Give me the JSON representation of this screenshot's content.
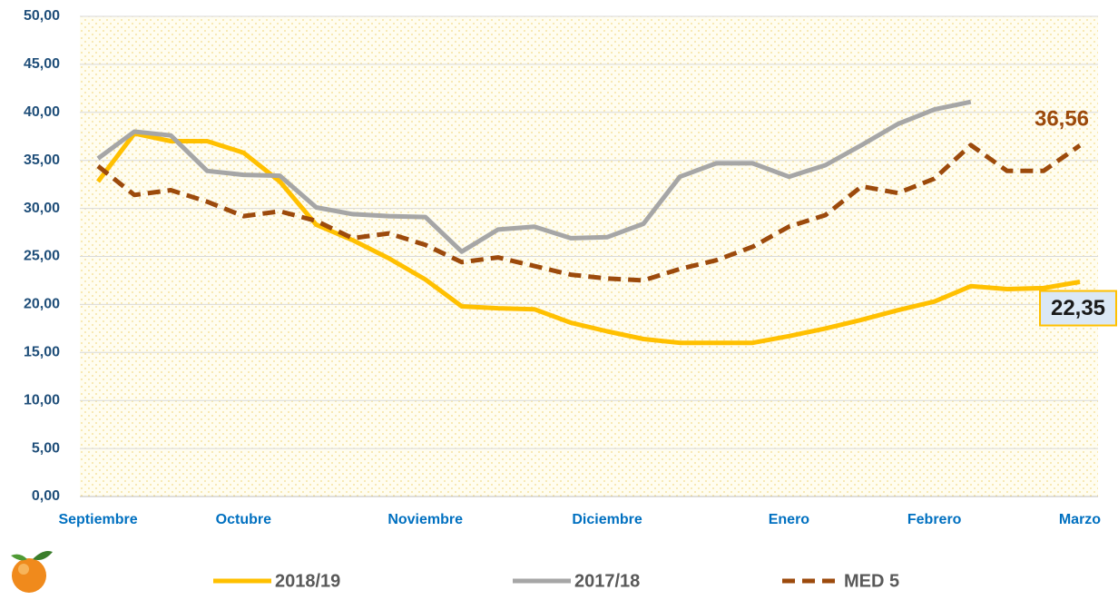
{
  "chart_data": {
    "type": "line",
    "categories": [
      "Septiembre",
      null,
      null,
      null,
      "Octubre",
      null,
      null,
      null,
      null,
      "Noviembre",
      null,
      null,
      null,
      null,
      "Diciembre",
      null,
      null,
      null,
      null,
      "Enero",
      null,
      null,
      null,
      "Febrero",
      null,
      null,
      null,
      "Marzo"
    ],
    "series": [
      {
        "name": "2018/19",
        "color": "#ffc000",
        "style": "solid",
        "values": [
          32.8,
          37.8,
          37.0,
          37.0,
          35.8,
          32.8,
          28.3,
          26.7,
          24.8,
          22.6,
          19.8,
          19.6,
          19.5,
          18.1,
          17.2,
          16.4,
          16.0,
          16.0,
          16.0,
          16.7,
          17.5,
          18.4,
          19.4,
          20.3,
          21.9,
          21.6,
          21.7,
          22.35
        ],
        "value_labels": [
          null,
          null,
          null,
          null,
          null,
          null,
          null,
          null,
          null,
          null,
          null,
          null,
          null,
          null,
          null,
          null,
          null,
          null,
          null,
          null,
          null,
          null,
          null,
          null,
          null,
          null,
          null,
          "22,35"
        ]
      },
      {
        "name": "2017/18",
        "color": "#a6a6a6",
        "style": "solid",
        "values": [
          35.2,
          38.0,
          37.6,
          33.9,
          33.5,
          33.4,
          30.1,
          29.4,
          29.2,
          29.1,
          25.5,
          27.8,
          28.1,
          26.9,
          27.0,
          28.4,
          33.3,
          34.7,
          34.7,
          33.3,
          34.5,
          36.6,
          38.8,
          40.3,
          41.1,
          null,
          null,
          null
        ]
      },
      {
        "name": "MED 5",
        "color": "#9c4a0c",
        "style": "dashed",
        "values": [
          34.4,
          31.4,
          31.9,
          30.7,
          29.2,
          29.7,
          28.7,
          26.9,
          27.4,
          26.2,
          24.4,
          24.9,
          24.0,
          23.1,
          22.7,
          22.5,
          23.7,
          24.6,
          26.0,
          28.1,
          29.3,
          32.3,
          31.6,
          33.1,
          36.6,
          33.9,
          33.9,
          36.56
        ],
        "value_labels": [
          null,
          null,
          null,
          null,
          null,
          null,
          null,
          null,
          null,
          null,
          null,
          null,
          null,
          null,
          null,
          null,
          null,
          null,
          null,
          null,
          null,
          null,
          null,
          null,
          null,
          null,
          null,
          "36,56"
        ]
      }
    ],
    "ylim": [
      0,
      50
    ],
    "yticks": [
      {
        "value": 0,
        "label": "0,00"
      },
      {
        "value": 5,
        "label": "5,00"
      },
      {
        "value": 10,
        "label": "10,00"
      },
      {
        "value": 15,
        "label": "15,00"
      },
      {
        "value": 20,
        "label": "20,00"
      },
      {
        "value": 25,
        "label": "25,00"
      },
      {
        "value": 30,
        "label": "30,00"
      },
      {
        "value": 35,
        "label": "35,00"
      },
      {
        "value": 40,
        "label": "40,00"
      },
      {
        "value": 45,
        "label": "45,00"
      },
      {
        "value": 50,
        "label": "50,00"
      }
    ],
    "grid": true,
    "legend": "bottom"
  }
}
